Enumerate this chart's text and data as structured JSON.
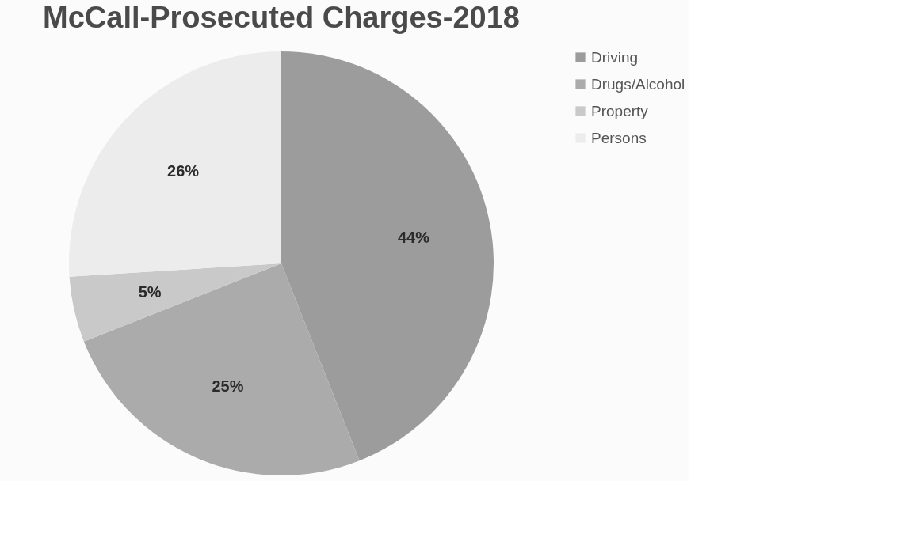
{
  "chart_data": {
    "type": "pie",
    "title": "McCall-Prosecuted Charges-2018",
    "categories": [
      "Driving",
      "Drugs/Alcohol",
      "Property",
      "Persons"
    ],
    "values": [
      44,
      25,
      5,
      26
    ],
    "value_labels": [
      "44%",
      "25%",
      "5%",
      "26%"
    ],
    "colors": [
      "#9c9c9c",
      "#ababab",
      "#c9c9c9",
      "#ececec"
    ],
    "legend": "right"
  }
}
